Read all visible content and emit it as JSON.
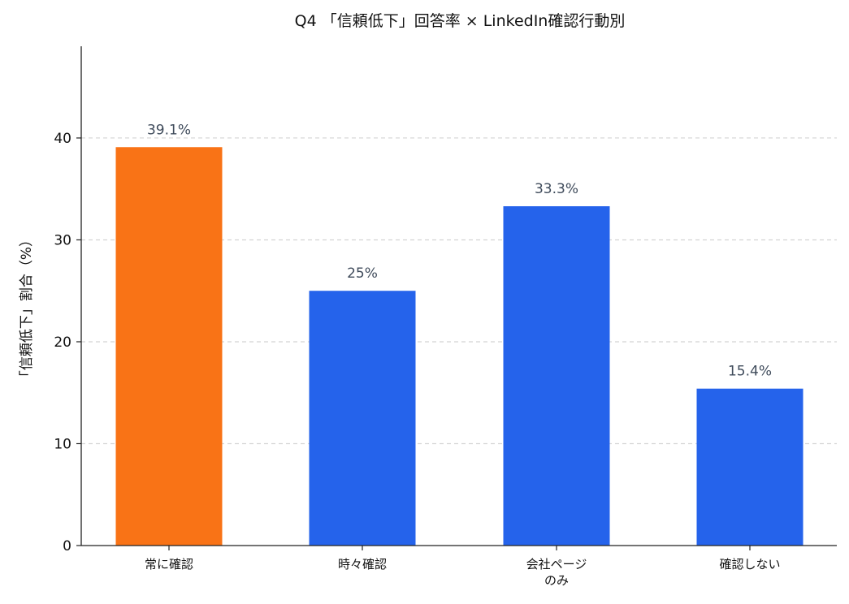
{
  "chart_data": {
    "type": "bar",
    "title": "Q4 「信頼低下」回答率 × LinkedIn確認行動別",
    "xlabel": "",
    "ylabel": "「信頼低下」割合（%）",
    "categories": [
      [
        "常に確認"
      ],
      [
        "時々確認"
      ],
      [
        "会社ページ",
        "のみ"
      ],
      [
        "確認しない"
      ]
    ],
    "values": [
      39.1,
      25,
      33.3,
      15.4
    ],
    "value_labels": [
      "39.1%",
      "25%",
      "33.3%",
      "15.4%"
    ],
    "bar_colors": [
      "#f97316",
      "#2563eb",
      "#2563eb",
      "#2563eb"
    ],
    "ylim": [
      0,
      49
    ],
    "yticks": [
      0,
      10,
      20,
      30,
      40
    ],
    "grid": true,
    "grid_axis": "y",
    "legend": "none"
  }
}
